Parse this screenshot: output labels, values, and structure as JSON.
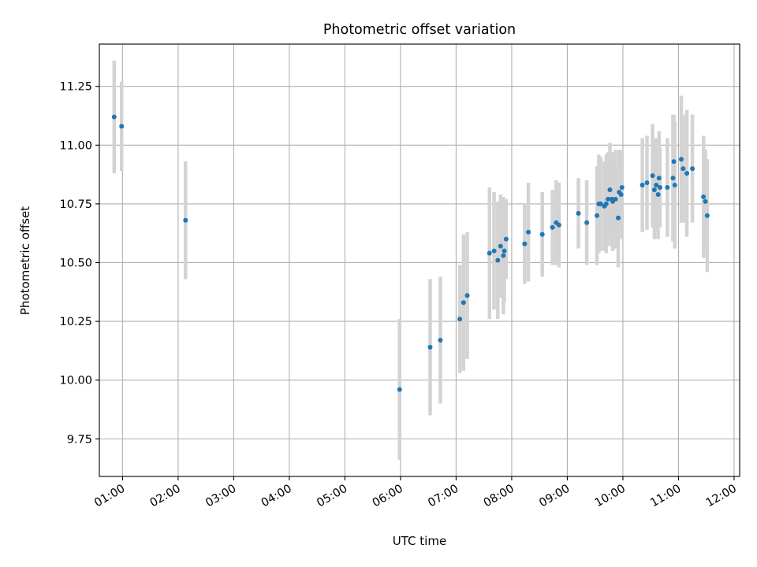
{
  "chart_data": {
    "type": "scatter",
    "title": "Photometric offset variation",
    "xlabel": "UTC time",
    "ylabel": "Photometric offset",
    "xlim": [
      "00:35",
      "12:06"
    ],
    "ylim": [
      9.59,
      11.43
    ],
    "grid": true,
    "legend": "none",
    "x_ticks": [
      "01:00",
      "02:00",
      "03:00",
      "04:00",
      "05:00",
      "06:00",
      "07:00",
      "08:00",
      "09:00",
      "10:00",
      "11:00",
      "12:00"
    ],
    "y_ticks": [
      9.75,
      10.0,
      10.25,
      10.5,
      10.75,
      11.0,
      11.25
    ],
    "colors": {
      "point": "#1f77b4",
      "errorbar": "#d3d3d3",
      "grid": "#b0b0b0"
    },
    "series": [
      {
        "x": [
          "00:51",
          "00:59",
          "02:08",
          "05:59",
          "06:32",
          "06:43",
          "07:04",
          "07:08",
          "07:12",
          "07:36",
          "07:41",
          "07:45",
          "07:48",
          "07:51",
          "07:52",
          "07:54",
          "08:14",
          "08:18",
          "08:33",
          "08:44",
          "08:48",
          "08:51",
          "09:12",
          "09:21",
          "09:32",
          "09:34",
          "09:36",
          "09:40",
          "09:42",
          "09:44",
          "09:46",
          "09:48",
          "09:49",
          "09:52",
          "09:55",
          "09:56",
          "09:58",
          "09:59",
          "10:21",
          "10:26",
          "10:32",
          "10:34",
          "10:36",
          "10:38",
          "10:39",
          "10:40",
          "10:48",
          "10:54",
          "10:55",
          "10:56",
          "11:03",
          "11:05",
          "11:09",
          "11:15",
          "11:27",
          "11:29",
          "11:31"
        ],
        "y": [
          11.12,
          11.08,
          10.68,
          9.96,
          10.14,
          10.17,
          10.26,
          10.33,
          10.36,
          10.54,
          10.55,
          10.51,
          10.57,
          10.53,
          10.55,
          10.6,
          10.58,
          10.63,
          10.62,
          10.65,
          10.67,
          10.66,
          10.71,
          10.67,
          10.7,
          10.75,
          10.75,
          10.74,
          10.75,
          10.77,
          10.81,
          10.77,
          10.76,
          10.77,
          10.69,
          10.8,
          10.79,
          10.82,
          10.83,
          10.84,
          10.87,
          10.81,
          10.83,
          10.79,
          10.86,
          10.82,
          10.82,
          10.86,
          10.93,
          10.83,
          10.94,
          10.9,
          10.88,
          10.9,
          10.78,
          10.76,
          10.7
        ],
        "err": [
          0.24,
          0.19,
          0.25,
          0.3,
          0.29,
          0.27,
          0.23,
          0.29,
          0.27,
          0.28,
          0.25,
          0.25,
          0.22,
          0.25,
          0.22,
          0.17,
          0.17,
          0.21,
          0.18,
          0.16,
          0.18,
          0.18,
          0.15,
          0.18,
          0.21,
          0.21,
          0.2,
          0.19,
          0.21,
          0.2,
          0.2,
          0.2,
          0.21,
          0.21,
          0.21,
          0.18,
          0.19,
          0.16,
          0.2,
          0.2,
          0.22,
          0.21,
          0.2,
          0.19,
          0.2,
          0.17,
          0.21,
          0.27,
          0.2,
          0.27,
          0.27,
          0.23,
          0.27,
          0.23,
          0.26,
          0.22,
          0.24
        ]
      }
    ]
  }
}
